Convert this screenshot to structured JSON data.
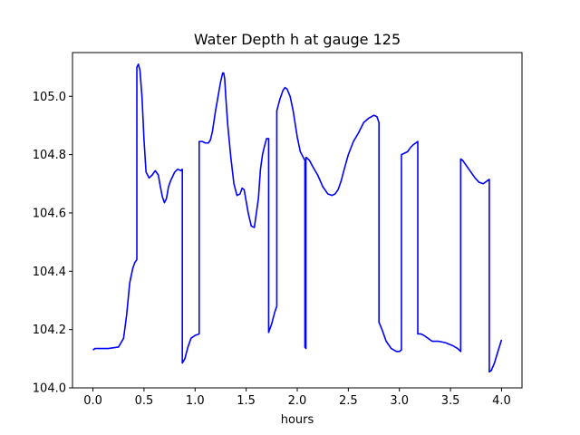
{
  "chart_data": {
    "type": "line",
    "title": "Water Depth h at gauge 125",
    "xlabel": "hours",
    "ylabel": "",
    "xlim": [
      -0.2,
      4.2
    ],
    "ylim": [
      104.0,
      105.15
    ],
    "xticks": [
      0.0,
      0.5,
      1.0,
      1.5,
      2.0,
      2.5,
      3.0,
      3.5,
      4.0
    ],
    "xtick_labels": [
      "0.0",
      "0.5",
      "1.0",
      "1.5",
      "2.0",
      "2.5",
      "3.0",
      "3.5",
      "4.0"
    ],
    "yticks": [
      104.0,
      104.2,
      104.4,
      104.6,
      104.8,
      105.0
    ],
    "ytick_labels": [
      "104.0",
      "104.2",
      "104.4",
      "104.6",
      "104.8",
      "105.0"
    ],
    "grid": false,
    "series": [
      {
        "color": "#0000ff",
        "x": [
          0.0,
          0.02,
          0.15,
          0.25,
          0.3,
          0.33,
          0.36,
          0.39,
          0.41,
          0.43,
          0.43,
          0.445,
          0.46,
          0.48,
          0.5,
          0.52,
          0.55,
          0.58,
          0.61,
          0.64,
          0.66,
          0.68,
          0.7,
          0.72,
          0.74,
          0.76,
          0.78,
          0.8,
          0.83,
          0.86,
          0.875,
          0.875,
          0.9,
          0.93,
          0.96,
          1.0,
          1.04,
          1.04,
          1.07,
          1.1,
          1.13,
          1.15,
          1.17,
          1.2,
          1.22,
          1.25,
          1.27,
          1.28,
          1.29,
          1.3,
          1.32,
          1.35,
          1.38,
          1.41,
          1.44,
          1.46,
          1.48,
          1.5,
          1.52,
          1.55,
          1.58,
          1.6,
          1.62,
          1.63,
          1.64,
          1.66,
          1.68,
          1.7,
          1.72,
          1.72,
          1.73,
          1.75,
          1.78,
          1.8,
          1.8,
          1.83,
          1.86,
          1.88,
          1.9,
          1.93,
          1.96,
          2.0,
          2.03,
          2.06,
          2.075,
          2.075,
          2.085,
          2.085,
          2.09,
          2.12,
          2.15,
          2.2,
          2.25,
          2.3,
          2.34,
          2.37,
          2.4,
          2.43,
          2.46,
          2.5,
          2.55,
          2.6,
          2.65,
          2.7,
          2.75,
          2.78,
          2.8,
          2.8,
          2.83,
          2.87,
          2.92,
          2.97,
          3.0,
          3.02,
          3.02,
          3.05,
          3.08,
          3.11,
          3.14,
          3.18,
          3.18,
          3.21,
          3.24,
          3.28,
          3.32,
          3.38,
          3.45,
          3.52,
          3.57,
          3.6,
          3.6,
          3.62,
          3.66,
          3.7,
          3.74,
          3.78,
          3.82,
          3.86,
          3.88,
          3.88,
          3.9,
          3.93,
          3.96,
          4.0
        ],
        "y": [
          104.13,
          104.135,
          104.135,
          104.14,
          104.17,
          104.25,
          104.36,
          104.41,
          104.43,
          104.44,
          105.1,
          105.11,
          105.09,
          105.0,
          104.85,
          104.74,
          104.72,
          104.73,
          104.745,
          104.73,
          104.69,
          104.655,
          104.635,
          104.65,
          104.69,
          104.71,
          104.725,
          104.74,
          104.75,
          104.745,
          104.75,
          104.085,
          104.1,
          104.14,
          104.17,
          104.18,
          104.185,
          104.845,
          104.845,
          104.84,
          104.84,
          104.85,
          104.88,
          104.95,
          104.99,
          105.05,
          105.08,
          105.08,
          105.06,
          105.0,
          104.9,
          104.79,
          104.7,
          104.66,
          104.665,
          104.685,
          104.68,
          104.64,
          104.6,
          104.555,
          104.55,
          104.6,
          104.65,
          104.7,
          104.75,
          104.8,
          104.83,
          104.855,
          104.855,
          104.19,
          104.2,
          104.22,
          104.26,
          104.28,
          104.95,
          104.99,
          105.02,
          105.03,
          105.025,
          105.0,
          104.95,
          104.86,
          104.81,
          104.79,
          104.78,
          104.14,
          104.135,
          104.79,
          104.79,
          104.78,
          104.76,
          104.73,
          104.69,
          104.665,
          104.66,
          104.665,
          104.68,
          104.71,
          104.75,
          104.8,
          104.845,
          104.875,
          104.91,
          104.925,
          104.935,
          104.93,
          104.91,
          104.225,
          104.2,
          104.16,
          104.135,
          104.125,
          104.125,
          104.13,
          104.8,
          104.805,
          104.81,
          104.825,
          104.835,
          104.845,
          104.185,
          104.185,
          104.18,
          104.17,
          104.16,
          104.16,
          104.155,
          104.145,
          104.135,
          104.125,
          104.785,
          104.78,
          104.76,
          104.74,
          104.72,
          104.705,
          104.7,
          104.71,
          104.715,
          104.055,
          104.06,
          104.085,
          104.12,
          104.165
        ]
      }
    ]
  }
}
